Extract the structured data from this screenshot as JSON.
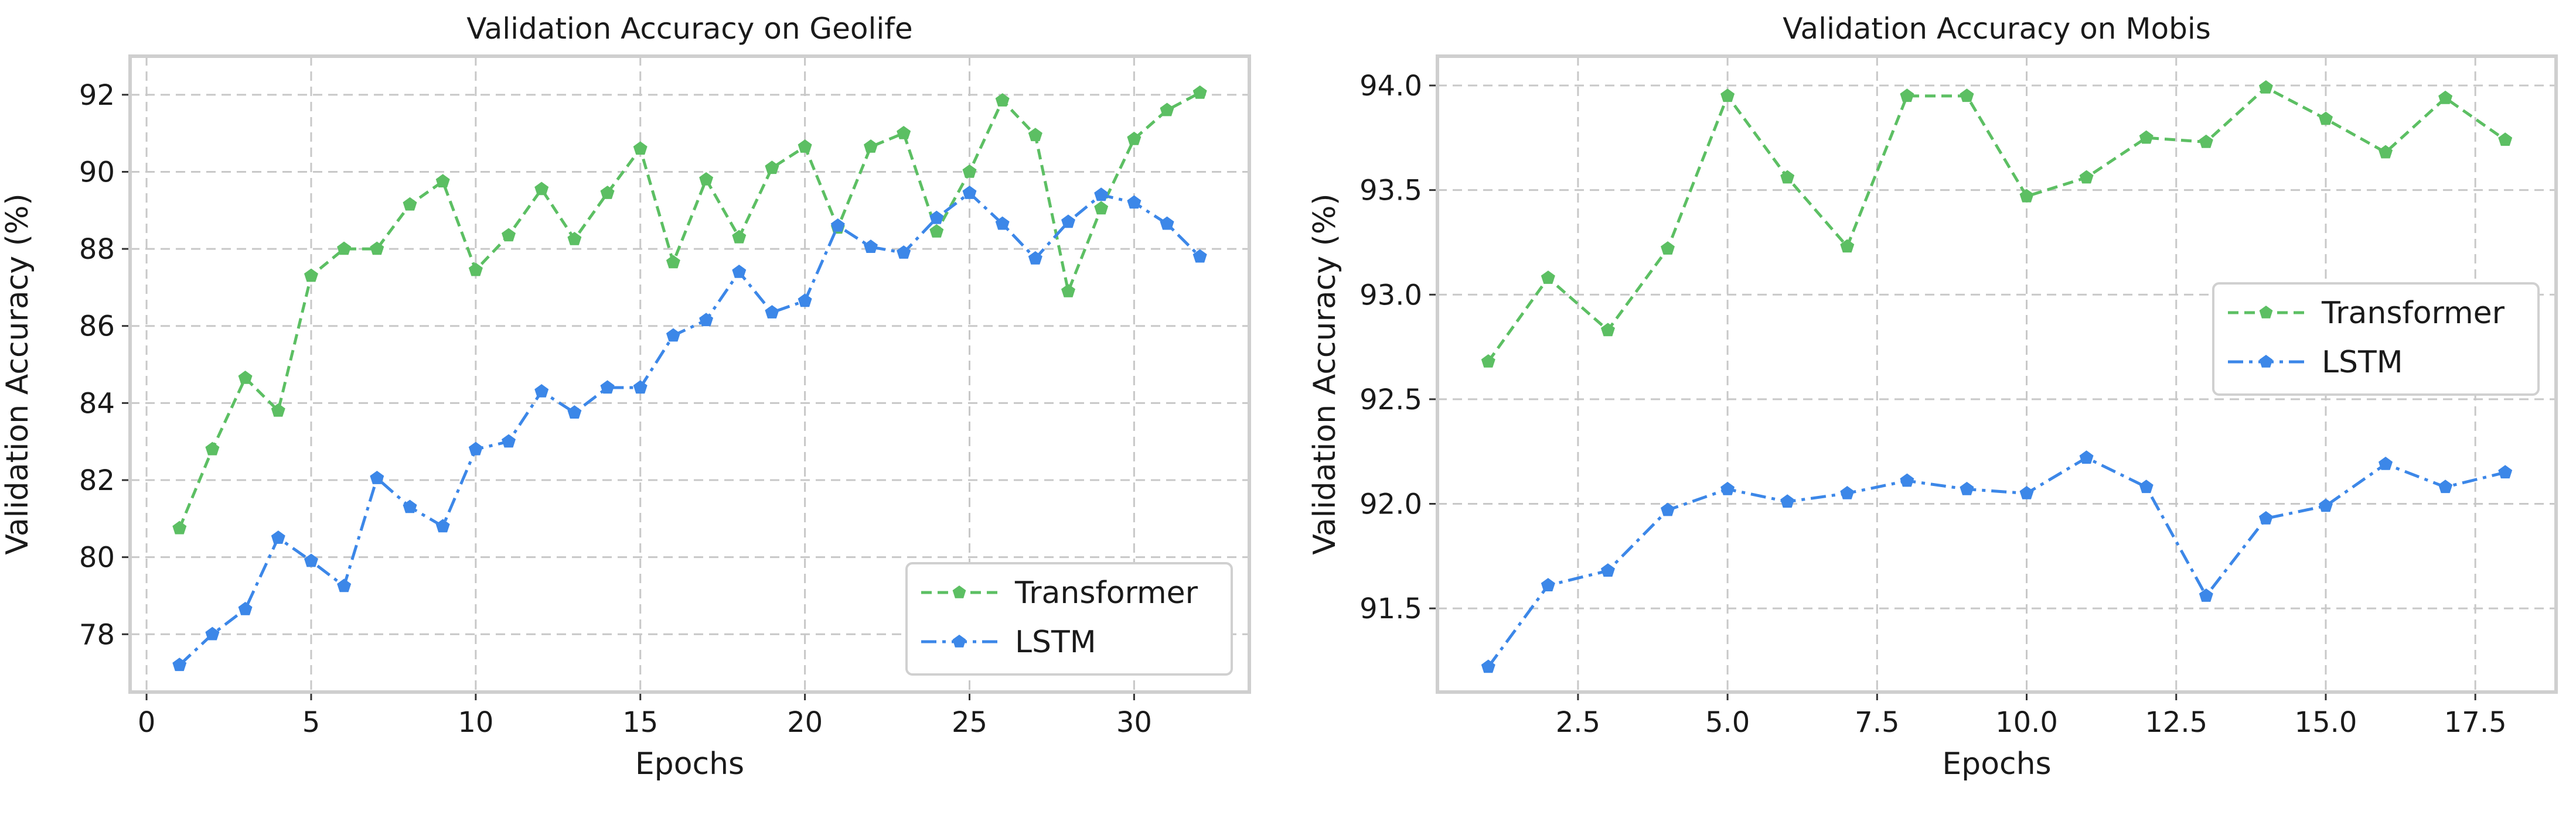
{
  "chart_data": [
    {
      "type": "line",
      "title": "Validation Accuracy on Geolife",
      "xlabel": "Epochs",
      "ylabel": "Validation Accuracy (%)",
      "xlim": [
        -0.5,
        33.5
      ],
      "ylim": [
        76.5,
        93.0
      ],
      "xticks": [
        0,
        5,
        10,
        15,
        20,
        25,
        30
      ],
      "xtick_labels": [
        "0",
        "5",
        "10",
        "15",
        "20",
        "25",
        "30"
      ],
      "yticks": [
        78,
        80,
        82,
        84,
        86,
        88,
        90,
        92
      ],
      "ytick_labels": [
        "78",
        "80",
        "82",
        "84",
        "86",
        "88",
        "90",
        "92"
      ],
      "grid": true,
      "legend_position": "lower-right",
      "x": [
        1,
        2,
        3,
        4,
        5,
        6,
        7,
        8,
        9,
        10,
        11,
        12,
        13,
        14,
        15,
        16,
        17,
        18,
        19,
        20,
        21,
        22,
        23,
        24,
        25,
        26,
        27,
        28,
        29,
        30,
        31,
        32
      ],
      "series": [
        {
          "name": "Transformer",
          "color": "#5cbf63",
          "line_style": "dashed",
          "marker": "pentagon",
          "values": [
            80.75,
            82.8,
            84.65,
            83.8,
            87.3,
            88.0,
            88.0,
            89.15,
            89.75,
            87.45,
            88.35,
            89.55,
            88.25,
            89.45,
            90.6,
            87.65,
            89.8,
            88.3,
            90.1,
            90.65,
            88.55,
            90.65,
            91.0,
            88.45,
            90.0,
            91.85,
            90.95,
            86.9,
            89.05,
            90.85,
            91.6,
            92.05
          ]
        },
        {
          "name": "LSTM",
          "color": "#3c87e8",
          "line_style": "dashdot",
          "marker": "pentagon",
          "values": [
            77.2,
            78.0,
            78.65,
            80.5,
            79.9,
            79.25,
            82.05,
            81.3,
            80.8,
            82.8,
            83.0,
            84.3,
            83.75,
            84.4,
            84.4,
            85.75,
            86.15,
            87.4,
            86.35,
            86.65,
            88.6,
            88.05,
            87.9,
            88.8,
            89.45,
            88.65,
            87.75,
            88.7,
            89.4,
            89.2,
            88.65,
            87.8
          ]
        }
      ]
    },
    {
      "type": "line",
      "title": "Validation Accuracy on Mobis",
      "xlabel": "Epochs",
      "ylabel": "Validation Accuracy (%)",
      "xlim": [
        0.15,
        18.85
      ],
      "ylim": [
        91.1,
        94.14
      ],
      "xticks": [
        2.5,
        5.0,
        7.5,
        10.0,
        12.5,
        15.0,
        17.5
      ],
      "xtick_labels": [
        "2.5",
        "5.0",
        "7.5",
        "10.0",
        "12.5",
        "15.0",
        "17.5"
      ],
      "yticks": [
        91.5,
        92.0,
        92.5,
        93.0,
        93.5,
        94.0
      ],
      "ytick_labels": [
        "91.5",
        "92.0",
        "92.5",
        "93.0",
        "93.5",
        "94.0"
      ],
      "grid": true,
      "legend_position": "center-right",
      "x": [
        1,
        2,
        3,
        4,
        5,
        6,
        7,
        8,
        9,
        10,
        11,
        12,
        13,
        14,
        15,
        16,
        17,
        18
      ],
      "series": [
        {
          "name": "Transformer",
          "color": "#5cbf63",
          "line_style": "dashed",
          "marker": "pentagon",
          "values": [
            92.68,
            93.08,
            92.83,
            93.22,
            93.95,
            93.56,
            93.23,
            93.95,
            93.95,
            93.47,
            93.56,
            93.75,
            93.73,
            93.99,
            93.84,
            93.68,
            93.94,
            93.74
          ]
        },
        {
          "name": "LSTM",
          "color": "#3c87e8",
          "line_style": "dashdot",
          "marker": "pentagon",
          "values": [
            91.22,
            91.61,
            91.68,
            91.97,
            92.07,
            92.01,
            92.05,
            92.11,
            92.07,
            92.05,
            92.22,
            92.08,
            91.56,
            91.93,
            91.99,
            92.19,
            92.08,
            92.15
          ]
        }
      ]
    }
  ]
}
